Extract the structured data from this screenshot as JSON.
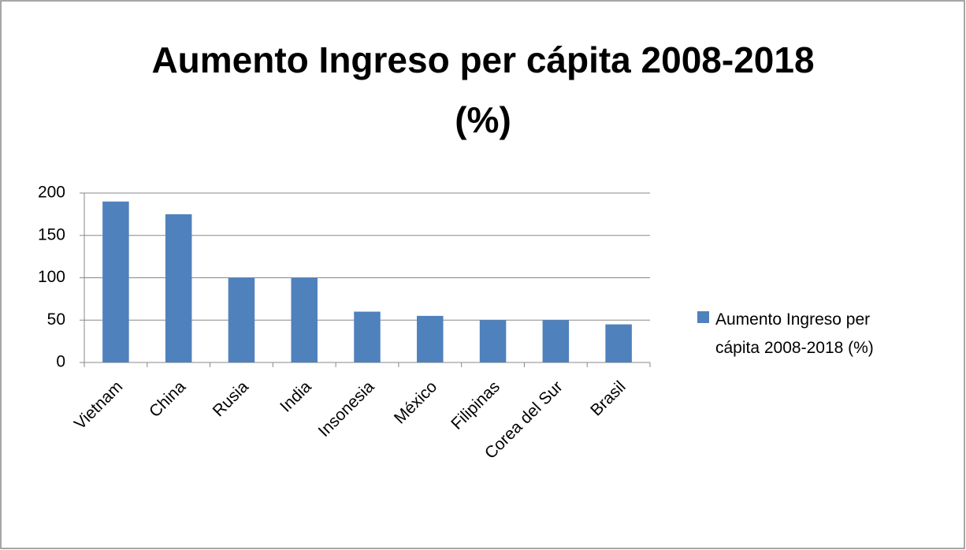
{
  "chart_data": {
    "type": "bar",
    "title": "Aumento Ingreso per cápita 2008-2018 (%)",
    "categories": [
      "Vietnam",
      "China",
      "Rusia",
      "India",
      "Insonesia",
      "México",
      "Filipinas",
      "Corea del Sur",
      "Brasil"
    ],
    "series": [
      {
        "name": "Aumento Ingreso per cápita 2008-2018 (%)",
        "color": "#4f81bd",
        "values": [
          190,
          175,
          100,
          100,
          60,
          55,
          50,
          50,
          45
        ]
      }
    ],
    "ylim": [
      0,
      200
    ],
    "yticks": [
      0,
      50,
      100,
      150,
      200
    ],
    "grid": true,
    "legend": "right"
  }
}
